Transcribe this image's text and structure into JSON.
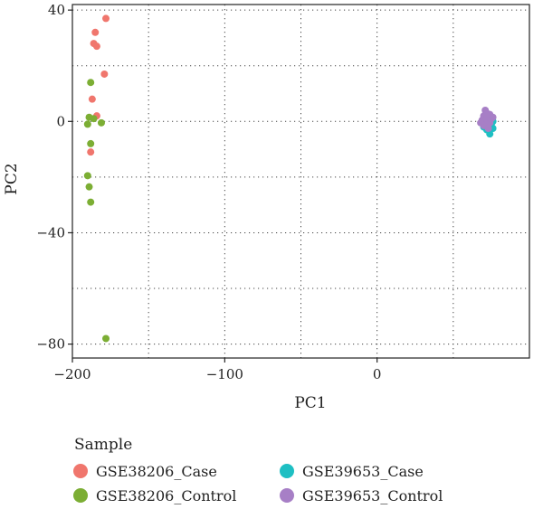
{
  "chart_data": {
    "type": "scatter",
    "title": "",
    "xlabel": "PC1",
    "ylabel": "PC2",
    "xlim": [
      -200,
      100
    ],
    "ylim": [
      -85,
      42
    ],
    "xticks": [
      -200,
      -100,
      0
    ],
    "yticks": [
      40,
      0,
      -40,
      -80
    ],
    "xtick_labels": [
      "−200",
      "−100",
      "0"
    ],
    "ytick_labels": [
      "40",
      "0",
      "−40",
      "−80"
    ],
    "grid": true,
    "legend": {
      "title": "Sample",
      "placement": "bottom"
    },
    "series": [
      {
        "name": "GSE38206_Case",
        "color": "#F0766D",
        "points": [
          {
            "x": -178,
            "y": 37
          },
          {
            "x": -185,
            "y": 32
          },
          {
            "x": -186,
            "y": 28
          },
          {
            "x": -184,
            "y": 27
          },
          {
            "x": -179,
            "y": 17
          },
          {
            "x": -187,
            "y": 8
          },
          {
            "x": -184,
            "y": 2
          },
          {
            "x": -188,
            "y": -11
          }
        ]
      },
      {
        "name": "GSE38206_Control",
        "color": "#7CAE34",
        "points": [
          {
            "x": -188,
            "y": 14
          },
          {
            "x": -189,
            "y": 1.5
          },
          {
            "x": -186,
            "y": 1
          },
          {
            "x": -190,
            "y": -1
          },
          {
            "x": -181,
            "y": -0.5
          },
          {
            "x": -188,
            "y": -8
          },
          {
            "x": -190,
            "y": -19.5
          },
          {
            "x": -189,
            "y": -23.5
          },
          {
            "x": -188,
            "y": -29
          },
          {
            "x": -178,
            "y": -78
          }
        ]
      },
      {
        "name": "GSE39653_Case",
        "color": "#1EBFC3",
        "points": [
          {
            "x": 74,
            "y": -4.5
          },
          {
            "x": 76,
            "y": -2.5
          },
          {
            "x": 72,
            "y": -3
          },
          {
            "x": 75,
            "y": -1
          },
          {
            "x": 73,
            "y": -1.5
          },
          {
            "x": 70,
            "y": -2
          },
          {
            "x": 76,
            "y": 0
          }
        ]
      },
      {
        "name": "GSE39653_Control",
        "color": "#A77FC6",
        "points": [
          {
            "x": 71,
            "y": 4
          },
          {
            "x": 72,
            "y": 3
          },
          {
            "x": 74,
            "y": 2.5
          },
          {
            "x": 70,
            "y": 2
          },
          {
            "x": 73,
            "y": 1.5
          },
          {
            "x": 75,
            "y": 1
          },
          {
            "x": 69,
            "y": 0.5
          },
          {
            "x": 71,
            "y": 0
          },
          {
            "x": 74,
            "y": -0.5
          },
          {
            "x": 72,
            "y": -1
          },
          {
            "x": 70,
            "y": -1.5
          },
          {
            "x": 76,
            "y": 1.5
          },
          {
            "x": 73,
            "y": -2.5
          },
          {
            "x": 68,
            "y": -0.5
          },
          {
            "x": 72,
            "y": 2.5
          }
        ]
      }
    ]
  }
}
